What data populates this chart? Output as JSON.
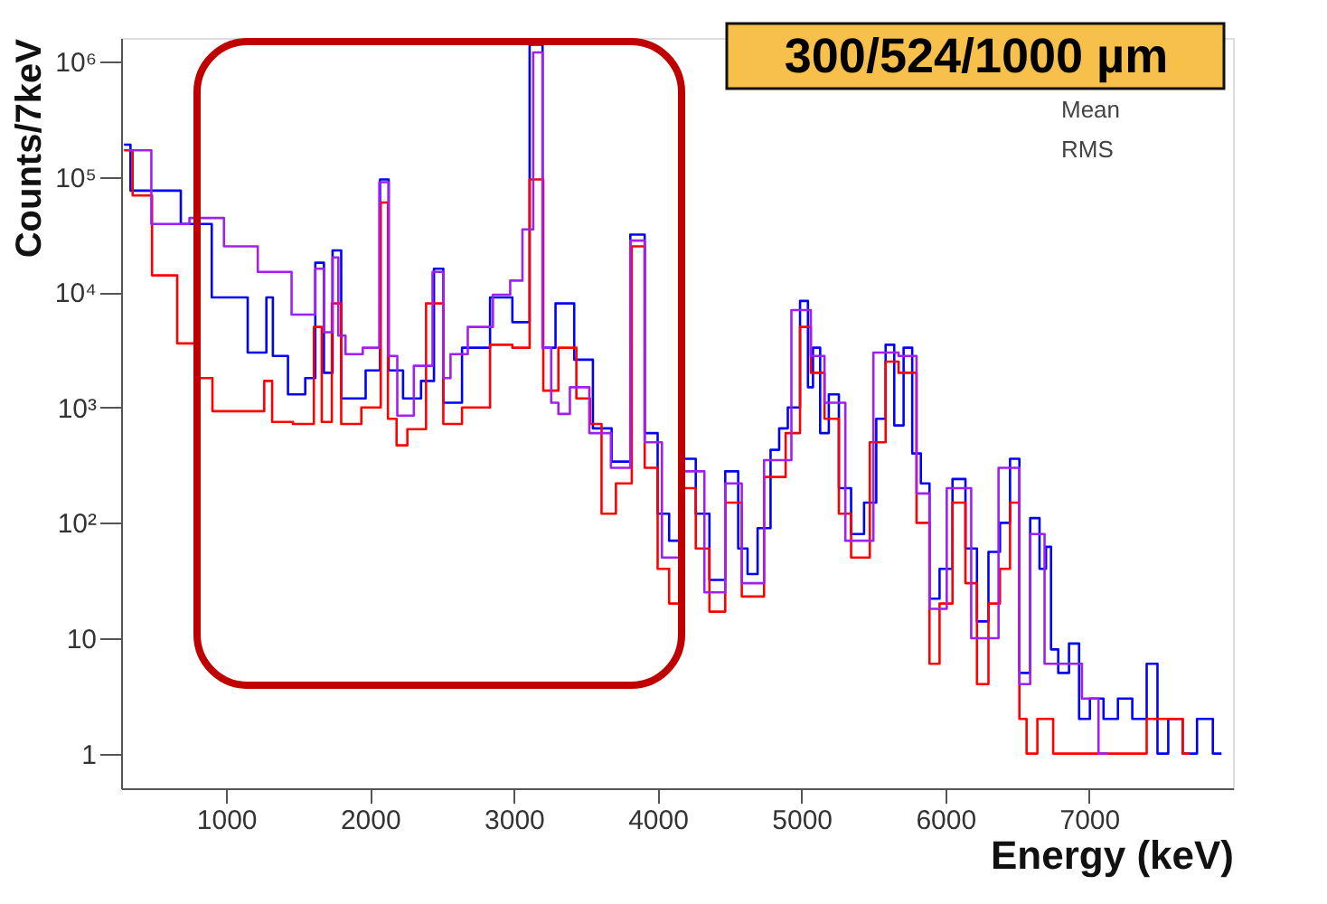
{
  "chart_data": {
    "type": "step",
    "xlabel": "Energy (keV)",
    "ylabel": "Counts/7keV",
    "log": "y",
    "grid": false,
    "line_style": "solid",
    "xlim": [
      270,
      8000
    ],
    "xticks": [
      1000,
      2000,
      3000,
      4000,
      5000,
      6000,
      7000
    ],
    "ylim": [
      0.5,
      1600000
    ],
    "yticks": [
      1,
      10,
      {
        "value": 100,
        "label": "10²"
      },
      {
        "value": 1000,
        "label": "10³"
      },
      {
        "value": 10000,
        "label": "10⁴"
      },
      {
        "value": 100000,
        "label": "10⁵"
      },
      {
        "value": 1000000,
        "label": "10⁶"
      }
    ],
    "annotations": [
      "300/524/1000 µm",
      "Mean",
      "RMS"
    ],
    "series": [
      {
        "color": "#a020f0",
        "x": [
          320,
          640,
          850,
          1120,
          1320,
          1590,
          1650,
          1710,
          1770,
          1790,
          1870,
          2030,
          2100,
          2160,
          2220,
          2390,
          2480,
          2540,
          2580,
          2780,
          2930,
          3020,
          3100,
          3170,
          3230,
          3290,
          3330,
          3450,
          3600,
          3750,
          3870,
          3950,
          4110,
          4230,
          4420,
          4520,
          4650,
          4830,
          5030,
          5100,
          5220,
          5390,
          5610,
          5740,
          5860,
          5920,
          6100,
          6260,
          6480,
          6550,
          6630,
          6750,
          6900,
          7000,
          7130
        ],
        "values": [
          170000,
          39000,
          44000,
          25000,
          15000,
          6400,
          16000,
          4500,
          20000,
          4200,
          2900,
          3300,
          90000,
          2800,
          850,
          2300,
          15000,
          1800,
          2900,
          5000,
          9500,
          12600,
          35000,
          1200000,
          3300,
          1100,
          880,
          1500,
          600,
          300,
          28000,
          500,
          50,
          280,
          25,
          220,
          30,
          350,
          7000,
          2800,
          1100,
          70,
          3000,
          2800,
          180,
          18,
          200,
          10,
          300,
          4,
          80,
          6,
          6,
          3,
          1
        ]
      },
      {
        "color": "#0000ff",
        "x": [
          290,
          380,
          610,
          760,
          1040,
          1260,
          1300,
          1350,
          1510,
          1590,
          1650,
          1710,
          1770,
          1830,
          1900,
          2040,
          2100,
          2160,
          2300,
          2410,
          2480,
          2540,
          2740,
          2930,
          3050,
          3170,
          3230,
          3350,
          3490,
          3610,
          3750,
          3870,
          3950,
          4050,
          4110,
          4230,
          4300,
          4420,
          4520,
          4600,
          4650,
          4740,
          4830,
          4860,
          4950,
          5030,
          5060,
          5100,
          5160,
          5220,
          5300,
          5390,
          5480,
          5560,
          5610,
          5680,
          5740,
          5800,
          5860,
          5920,
          6000,
          6100,
          6180,
          6260,
          6340,
          6420,
          6480,
          6550,
          6630,
          6680,
          6720,
          6750,
          6820,
          6900,
          6960,
          7050,
          7150,
          7250,
          7350,
          7450,
          7500,
          7600,
          7700,
          7800,
          7920
        ],
        "values": [
          190000,
          76000,
          76000,
          39000,
          9000,
          3000,
          9000,
          2800,
          1300,
          1800,
          18000,
          2000,
          23000,
          1200,
          1200,
          2100,
          95000,
          2100,
          1200,
          1700,
          16000,
          1100,
          3300,
          9000,
          5500,
          1400000,
          3300,
          8000,
          2600,
          660,
          340,
          31600,
          600,
          120,
          70,
          360,
          120,
          32,
          280,
          60,
          36,
          90,
          430,
          660,
          1000,
          8400,
          1500,
          3300,
          600,
          1300,
          200,
          80,
          150,
          800,
          3500,
          700,
          3300,
          400,
          220,
          22,
          40,
          240,
          60,
          14,
          56,
          100,
          360,
          5,
          110,
          40,
          62,
          8,
          5,
          9,
          2,
          3,
          2,
          3,
          2,
          6,
          1,
          2,
          1,
          2,
          1
        ]
      },
      {
        "color": "#ff0000",
        "x": [
          290,
          410,
          560,
          760,
          850,
          960,
          1230,
          1300,
          1340,
          1590,
          1630,
          1700,
          1770,
          1830,
          2050,
          2100,
          2150,
          2220,
          2300,
          2480,
          2540,
          2740,
          2930,
          3050,
          3170,
          3240,
          3380,
          3490,
          3570,
          3650,
          3770,
          3870,
          3950,
          4050,
          4110,
          4230,
          4300,
          4420,
          4520,
          4650,
          4830,
          4950,
          5030,
          5100,
          5220,
          5300,
          5390,
          5560,
          5610,
          5740,
          5860,
          5920,
          6000,
          6100,
          6180,
          6260,
          6340,
          6420,
          6480,
          6550,
          6580,
          6700,
          6800,
          7200,
          7600,
          7700
        ],
        "values": [
          170000,
          69000,
          14000,
          3600,
          1800,
          930,
          930,
          1700,
          750,
          720,
          5000,
          750,
          8000,
          720,
          1000,
          60000,
          800,
          470,
          650,
          8000,
          720,
          1000,
          3500,
          3300,
          95000,
          1400,
          3300,
          1200,
          720,
          120,
          220,
          25000,
          300,
          40,
          20,
          200,
          60,
          17,
          150,
          23,
          250,
          600,
          5000,
          2000,
          800,
          120,
          50,
          500,
          2500,
          2000,
          100,
          6,
          20,
          150,
          30,
          4,
          20,
          40,
          150,
          2,
          1,
          2,
          1,
          1,
          2,
          1
        ]
      }
    ]
  }
}
